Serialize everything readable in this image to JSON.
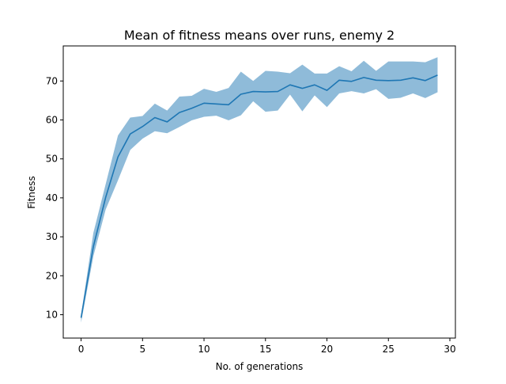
{
  "chart_data": {
    "type": "line",
    "title": "Mean of fitness means over runs, enemy 2",
    "xlabel": "No. of generations",
    "ylabel": "Fitness",
    "xlim": [
      -1.45,
      30.45
    ],
    "ylim": [
      4,
      79
    ],
    "xticks": [
      0,
      5,
      10,
      15,
      20,
      25,
      30
    ],
    "yticks": [
      10,
      20,
      30,
      40,
      50,
      60,
      70
    ],
    "grid": false,
    "colors": {
      "line": "#1f77b4",
      "band": "#1f77b4",
      "band_opacity": 0.5
    },
    "series": [
      {
        "x": [
          0,
          1,
          2,
          3,
          4,
          5,
          6,
          7,
          8,
          9,
          10,
          11,
          12,
          13,
          14,
          15,
          16,
          17,
          18,
          19,
          20,
          21,
          22,
          23,
          24,
          25,
          26,
          27,
          28,
          29
        ],
        "mean": [
          9.2,
          27.5,
          40.1,
          50.5,
          56.4,
          58.3,
          60.6,
          59.5,
          61.9,
          63.0,
          64.3,
          64.1,
          63.9,
          66.6,
          67.3,
          67.2,
          67.3,
          69.0,
          68.1,
          69.0,
          67.6,
          70.2,
          69.9,
          70.9,
          70.2,
          70.1,
          70.2,
          70.8,
          70.1,
          71.5
        ],
        "upper": [
          10.0,
          31.0,
          43.5,
          56.0,
          60.6,
          61.0,
          64.2,
          62.4,
          66.0,
          66.2,
          68.0,
          67.2,
          68.2,
          72.4,
          70.0,
          72.6,
          72.4,
          72.0,
          74.2,
          71.9,
          71.9,
          73.8,
          72.5,
          75.2,
          72.6,
          75.0,
          75.0,
          75.0,
          74.8,
          76.1
        ],
        "lower": [
          8.0,
          25.0,
          37.0,
          44.5,
          52.3,
          55.2,
          57.1,
          56.6,
          58.2,
          59.9,
          60.8,
          61.1,
          59.9,
          61.2,
          64.8,
          62.1,
          62.4,
          66.5,
          62.2,
          66.3,
          63.3,
          66.8,
          67.4,
          66.8,
          67.9,
          65.4,
          65.7,
          66.8,
          65.6,
          67.1
        ]
      }
    ]
  }
}
